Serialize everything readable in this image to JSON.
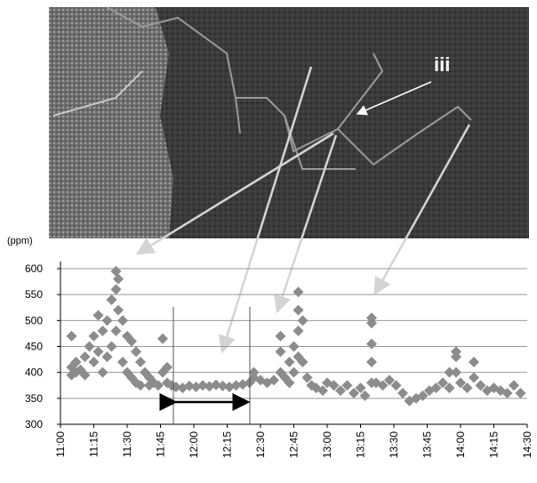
{
  "chart_data": {
    "type": "scatter",
    "y_label": "(ppm)",
    "annotation": "iii",
    "color": "#8c8c8c",
    "grid": true,
    "x": [
      665,
      665,
      665,
      667,
      667,
      669,
      671,
      671,
      673,
      675,
      675,
      677,
      677,
      679,
      679,
      681,
      681,
      683,
      683,
      685,
      685,
      685,
      686,
      686,
      688,
      688,
      690,
      690,
      692,
      692,
      694,
      694,
      696,
      696,
      698,
      700,
      700,
      702,
      704,
      706,
      706,
      708,
      708,
      710,
      712,
      715,
      718,
      721,
      724,
      727,
      730,
      733,
      736,
      739,
      742,
      745,
      747,
      747,
      750,
      753,
      756,
      759,
      759,
      759,
      761,
      763,
      763,
      765,
      765,
      767,
      767,
      767,
      767,
      769,
      769,
      771,
      773,
      775,
      778,
      780,
      783,
      786,
      789,
      792,
      795,
      797,
      800,
      800,
      800,
      800,
      800,
      802,
      805,
      808,
      811,
      814,
      817,
      820,
      823,
      826,
      829,
      832,
      835,
      835,
      838,
      838,
      838,
      840,
      843,
      846,
      846,
      849,
      852,
      855,
      858,
      861,
      864,
      867
    ],
    "values": [
      470,
      410,
      395,
      400,
      420,
      405,
      430,
      395,
      450,
      470,
      420,
      510,
      440,
      480,
      400,
      500,
      430,
      540,
      450,
      595,
      560,
      480,
      580,
      520,
      500,
      420,
      470,
      400,
      460,
      390,
      440,
      380,
      420,
      375,
      400,
      390,
      375,
      380,
      375,
      465,
      400,
      410,
      380,
      375,
      372,
      370,
      374,
      372,
      375,
      373,
      376,
      374,
      372,
      375,
      377,
      380,
      390,
      400,
      385,
      380,
      385,
      470,
      440,
      400,
      390,
      420,
      380,
      450,
      400,
      555,
      520,
      480,
      430,
      500,
      420,
      390,
      375,
      370,
      365,
      380,
      375,
      365,
      375,
      360,
      370,
      355,
      505,
      495,
      455,
      420,
      380,
      380,
      375,
      385,
      375,
      360,
      345,
      350,
      355,
      365,
      370,
      380,
      400,
      370,
      430,
      440,
      400,
      380,
      370,
      420,
      390,
      375,
      365,
      370,
      365,
      360,
      375,
      360
    ],
    "xlim": [
      660,
      870
    ],
    "xticks": [
      {
        "value": 660,
        "label": "11:00"
      },
      {
        "value": 675,
        "label": "11:15"
      },
      {
        "value": 690,
        "label": "11:30"
      },
      {
        "value": 705,
        "label": "11:45"
      },
      {
        "value": 720,
        "label": "12:00"
      },
      {
        "value": 735,
        "label": "12:15"
      },
      {
        "value": 750,
        "label": "12:30"
      },
      {
        "value": 765,
        "label": "12:45"
      },
      {
        "value": 780,
        "label": "13:00"
      },
      {
        "value": 795,
        "label": "13:15"
      },
      {
        "value": 810,
        "label": "13:30"
      },
      {
        "value": 825,
        "label": "13:45"
      },
      {
        "value": 840,
        "label": "14:00"
      },
      {
        "value": 855,
        "label": "14:15"
      },
      {
        "value": 870,
        "label": "14:30"
      }
    ],
    "ylim": [
      300,
      600
    ],
    "yticks": [
      300,
      350,
      400,
      450,
      500,
      550,
      600
    ]
  }
}
